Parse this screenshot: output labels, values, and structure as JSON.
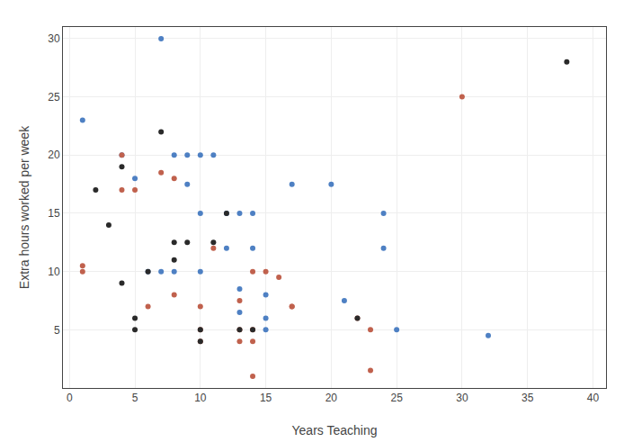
{
  "chart_data": {
    "type": "scatter",
    "xlabel": "Years Teaching",
    "ylabel": "Extra hours worked per week",
    "xlim": [
      -0.5,
      41
    ],
    "ylim": [
      0,
      31
    ],
    "xticks": [
      0,
      5,
      10,
      15,
      20,
      25,
      30,
      35,
      40
    ],
    "yticks": [
      5,
      10,
      15,
      20,
      25,
      30
    ],
    "grid": true,
    "series": [
      {
        "color": "#4e80c3",
        "x": [
          1,
          4,
          5,
          6,
          7,
          7,
          8,
          8,
          9,
          9,
          10,
          10,
          10,
          11,
          12,
          12,
          13,
          13,
          13,
          14,
          14,
          15,
          15,
          15,
          17,
          20,
          21,
          24,
          24,
          25,
          32
        ],
        "values": [
          23,
          20,
          18,
          10,
          30,
          10,
          10,
          20,
          20,
          17.5,
          20,
          15,
          10,
          20,
          15,
          12,
          15,
          8.5,
          6.5,
          15,
          12,
          8,
          5,
          6,
          17.5,
          17.5,
          7.5,
          15,
          12,
          5,
          4.5
        ]
      },
      {
        "color": "#c0614d",
        "x": [
          1,
          1,
          4,
          4,
          5,
          6,
          7,
          8,
          8,
          10,
          10,
          10,
          11,
          13,
          13,
          13,
          14,
          14,
          14,
          14,
          15,
          16,
          17,
          17,
          22,
          23,
          23,
          30
        ],
        "values": [
          10.5,
          10,
          20,
          17,
          17,
          7,
          18.5,
          18,
          8,
          7,
          5,
          4,
          12,
          7.5,
          5,
          4,
          10,
          5,
          4,
          1,
          10,
          9.5,
          7,
          7,
          6,
          5,
          1.5,
          25
        ]
      },
      {
        "color": "#2a2a2a",
        "x": [
          2,
          3,
          4,
          4,
          5,
          5,
          6,
          7,
          8,
          8,
          9,
          10,
          10,
          11,
          12,
          13,
          14,
          22,
          38
        ],
        "values": [
          17,
          14,
          19,
          9,
          5,
          6,
          10,
          22,
          12.5,
          11,
          12.5,
          5,
          4,
          12.5,
          15,
          5,
          5,
          6,
          28
        ]
      }
    ]
  }
}
